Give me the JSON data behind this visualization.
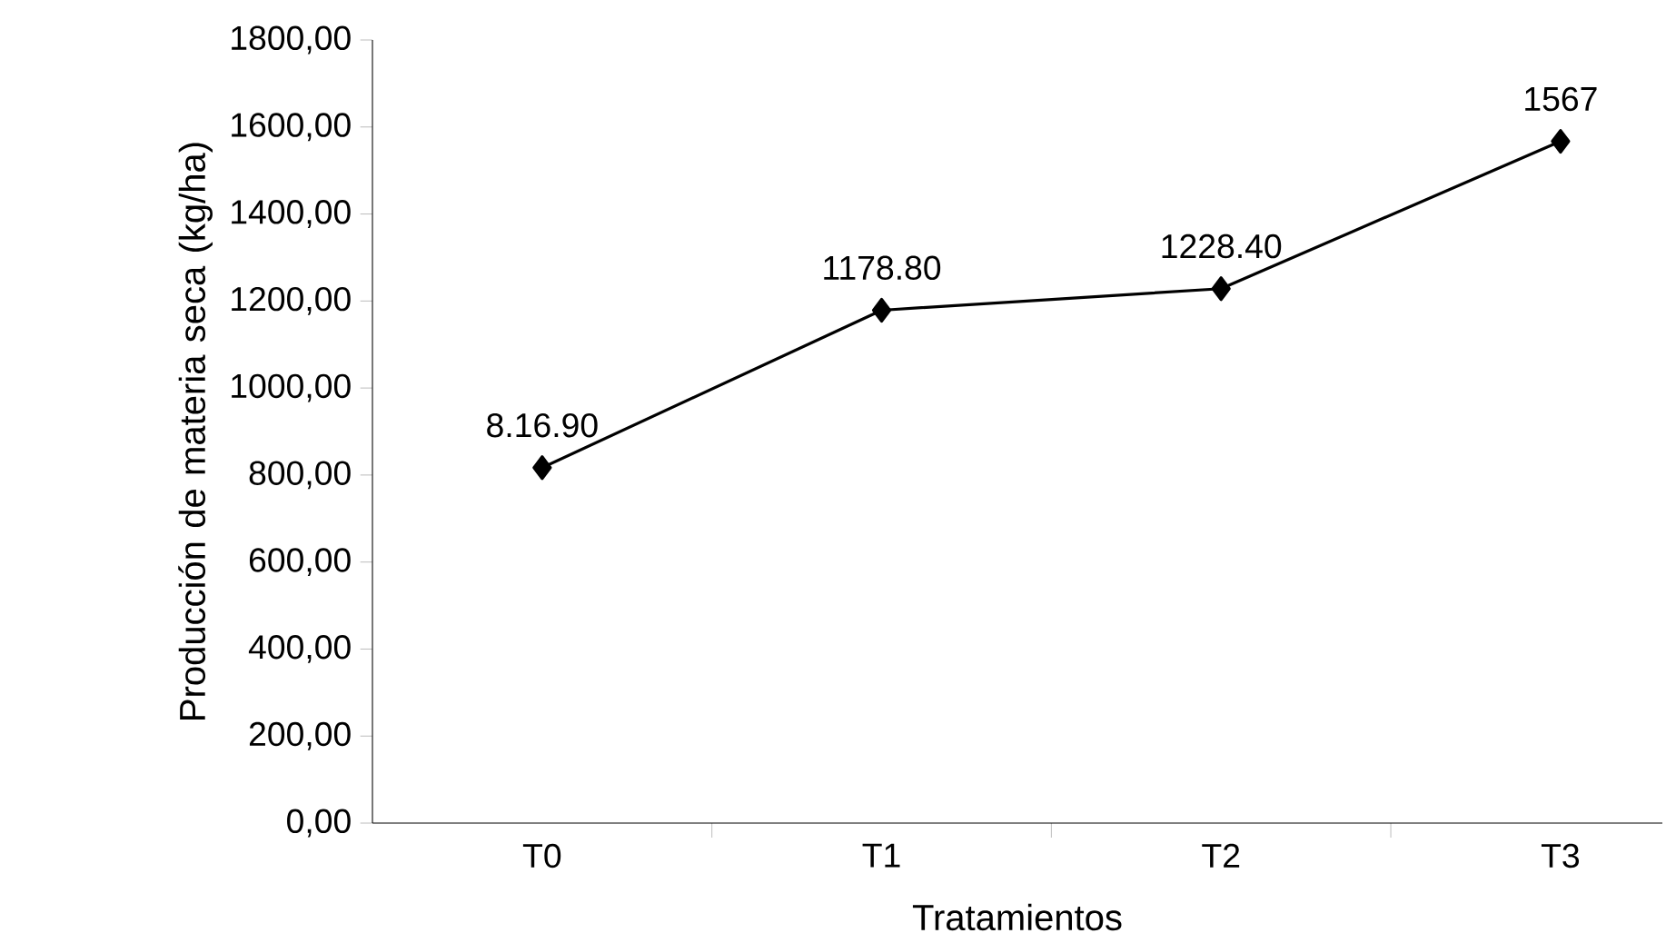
{
  "chart_data": {
    "type": "line",
    "xlabel": "Tratamientos",
    "ylabel": "Producción de materia seca (kg/ha)",
    "categories": [
      "T0",
      "T1",
      "T2",
      "T3"
    ],
    "series": [
      {
        "color": "#000000",
        "values": [
          816.9,
          1178.8,
          1228.4,
          1567
        ],
        "value_labels": [
          "8.16.90",
          "1178.80",
          "1228.40",
          "1567"
        ]
      }
    ],
    "ylim": [
      0,
      1800
    ],
    "yticks": [
      {
        "value": 0,
        "label": "0,00"
      },
      {
        "value": 200,
        "label": "200,00"
      },
      {
        "value": 400,
        "label": "400,00"
      },
      {
        "value": 600,
        "label": "600,00"
      },
      {
        "value": 800,
        "label": "800,00"
      },
      {
        "value": 1000,
        "label": "1000,00"
      },
      {
        "value": 1200,
        "label": "1200,00"
      },
      {
        "value": 1400,
        "label": "1400,00"
      },
      {
        "value": 1600,
        "label": "1600,00"
      },
      {
        "value": 1800,
        "label": "1800,00"
      }
    ],
    "marker": "diamond",
    "line_style": "solid",
    "grid": false
  }
}
